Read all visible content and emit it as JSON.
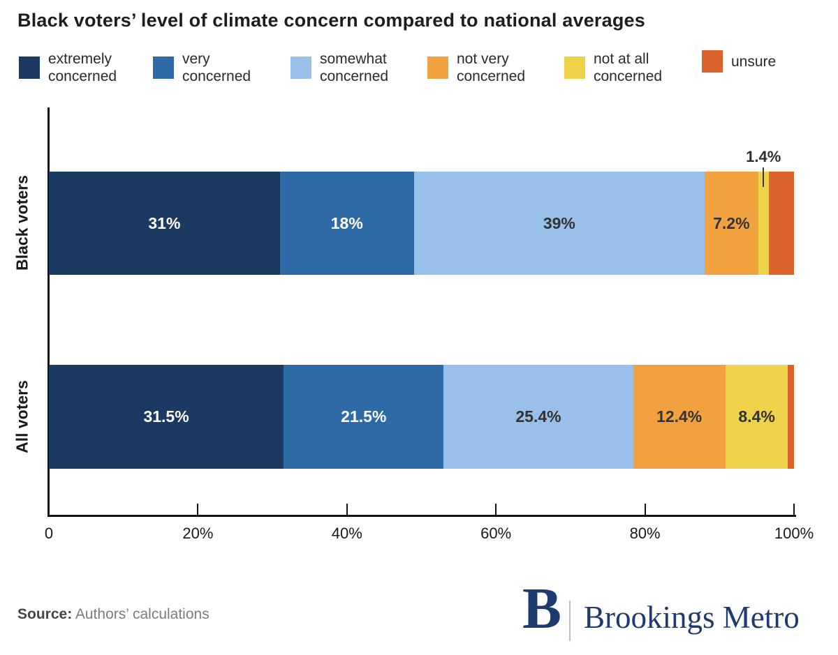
{
  "title": "Black voters’ level of climate concern compared to national averages",
  "source": {
    "label": "Source:",
    "text": "Authors’ calculations"
  },
  "logo": {
    "letter": "B",
    "text": "Brookings Metro",
    "color": "#1e3a6e"
  },
  "annotation": {
    "row": 0,
    "segment": 4,
    "text": "1.4%"
  },
  "chart_data": {
    "type": "bar",
    "orientation": "horizontal_stacked",
    "categories": [
      {
        "label": "extremely concerned",
        "color": "#1c3a61",
        "value_color": "#ffffff"
      },
      {
        "label": "very concerned",
        "color": "#2e6aa5",
        "value_color": "#ffffff"
      },
      {
        "label": "somewhat concerned",
        "color": "#99c0e9",
        "value_color": "#333333"
      },
      {
        "label": "not very concerned",
        "color": "#f1a23f",
        "value_color": "#333333"
      },
      {
        "label": "not at all concerned",
        "color": "#edd24a",
        "value_color": "#333333"
      },
      {
        "label": "unsure",
        "color": "#d9632b",
        "value_color": "#333333"
      }
    ],
    "rows": [
      {
        "name": "Black voters",
        "values": [
          31,
          18,
          39,
          7.2,
          1.4,
          3.4
        ],
        "display": [
          "31%",
          "18%",
          "39%",
          "7.2%",
          "",
          ""
        ]
      },
      {
        "name": "All voters",
        "values": [
          31.5,
          21.5,
          25.4,
          12.4,
          8.4,
          0.8
        ],
        "display": [
          "31.5%",
          "21.5%",
          "25.4%",
          "12.4%",
          "8.4%",
          ""
        ]
      }
    ],
    "xlim": [
      0,
      100
    ],
    "xticks": [
      {
        "value": 0,
        "label": "0"
      },
      {
        "value": 20,
        "label": "20%"
      },
      {
        "value": 40,
        "label": "40%"
      },
      {
        "value": 60,
        "label": "60%"
      },
      {
        "value": 80,
        "label": "80%"
      },
      {
        "value": 100,
        "label": "100%"
      }
    ],
    "grid": false,
    "legend_position": "top"
  }
}
